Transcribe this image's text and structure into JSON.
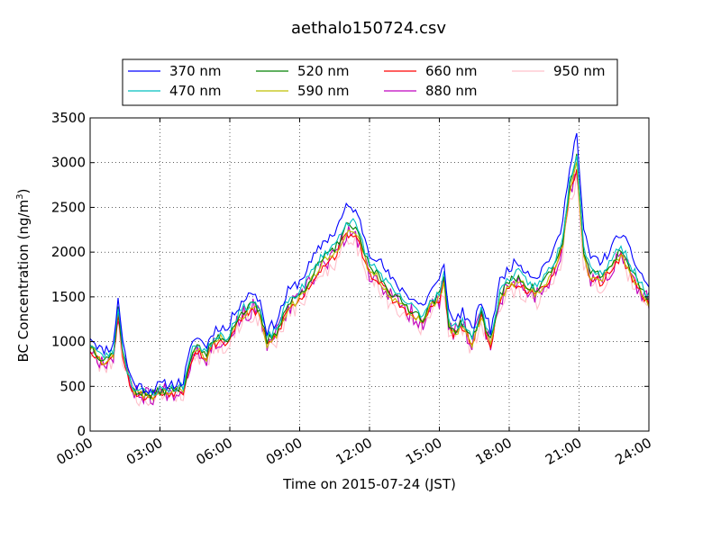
{
  "chart_data": {
    "type": "line",
    "title": "aethalo150724.csv",
    "xlabel": "Time on 2015-07-24 (JST)",
    "ylabel_main": "BC Concentration (ng/m",
    "ylabel_sup": "3",
    "ylabel_close": ")",
    "xlim": [
      "00:00",
      "24:00"
    ],
    "ylim": [
      0,
      3500
    ],
    "grid": true,
    "legend_position": "top-center",
    "xticks": [
      "00:00",
      "03:00",
      "06:00",
      "09:00",
      "12:00",
      "15:00",
      "18:00",
      "21:00",
      "24:00"
    ],
    "xtick_hours": [
      0,
      3,
      6,
      9,
      12,
      15,
      18,
      21,
      24
    ],
    "yticks": [
      0,
      500,
      1000,
      1500,
      2000,
      2500,
      3000,
      3500
    ],
    "base_profile": {
      "hours": [
        0,
        0.5,
        1,
        1.2,
        1.4,
        1.6,
        1.8,
        2,
        2.3,
        2.6,
        3,
        3.5,
        4,
        4.2,
        4.5,
        5,
        5.3,
        5.6,
        5.9,
        6.2,
        6.5,
        7,
        7.3,
        7.6,
        8,
        8.5,
        9,
        9.5,
        10,
        10.5,
        10.8,
        11,
        11.3,
        11.6,
        12,
        12.3,
        12.6,
        13,
        13.5,
        14,
        14.3,
        14.6,
        15,
        15.2,
        15.4,
        15.6,
        16,
        16.4,
        16.8,
        17.2,
        17.6,
        18,
        18.4,
        18.8,
        19.2,
        19.6,
        20,
        20.3,
        20.6,
        20.9,
        21.2,
        21.5,
        22,
        22.4,
        22.8,
        23.2,
        23.6,
        24
      ],
      "values": [
        950,
        800,
        850,
        1350,
        900,
        650,
        500,
        450,
        420,
        400,
        450,
        460,
        480,
        700,
        950,
        850,
        1000,
        1050,
        1000,
        1200,
        1300,
        1400,
        1300,
        1000,
        1100,
        1400,
        1500,
        1700,
        1900,
        2000,
        2150,
        2250,
        2250,
        2100,
        1800,
        1750,
        1650,
        1500,
        1400,
        1300,
        1250,
        1400,
        1500,
        1700,
        1200,
        1100,
        1200,
        1000,
        1300,
        1000,
        1500,
        1650,
        1700,
        1600,
        1550,
        1700,
        1850,
        2100,
        2700,
        3000,
        2000,
        1750,
        1700,
        1850,
        2000,
        1800,
        1600,
        1450
      ]
    },
    "series": [
      {
        "name": "370 nm",
        "color": "#0000ff",
        "scale": 1.1,
        "offset": 20,
        "noise": 60,
        "seed": 11
      },
      {
        "name": "470 nm",
        "color": "#00bfbf",
        "scale": 1.04,
        "offset": 0,
        "noise": 50,
        "seed": 23
      },
      {
        "name": "520 nm",
        "color": "#008000",
        "scale": 1.02,
        "offset": -10,
        "noise": 50,
        "seed": 37
      },
      {
        "name": "590 nm",
        "color": "#bfbf00",
        "scale": 1.0,
        "offset": -20,
        "noise": 50,
        "seed": 41
      },
      {
        "name": "660 nm",
        "color": "#ff0000",
        "scale": 0.99,
        "offset": -25,
        "noise": 50,
        "seed": 53
      },
      {
        "name": "880 nm",
        "color": "#bf00bf",
        "scale": 0.98,
        "offset": 0,
        "noise": 110,
        "seed": 67
      },
      {
        "name": "950 nm",
        "color": "#ffc0cb",
        "scale": 0.96,
        "offset": -30,
        "noise": 110,
        "seed": 79
      }
    ]
  }
}
